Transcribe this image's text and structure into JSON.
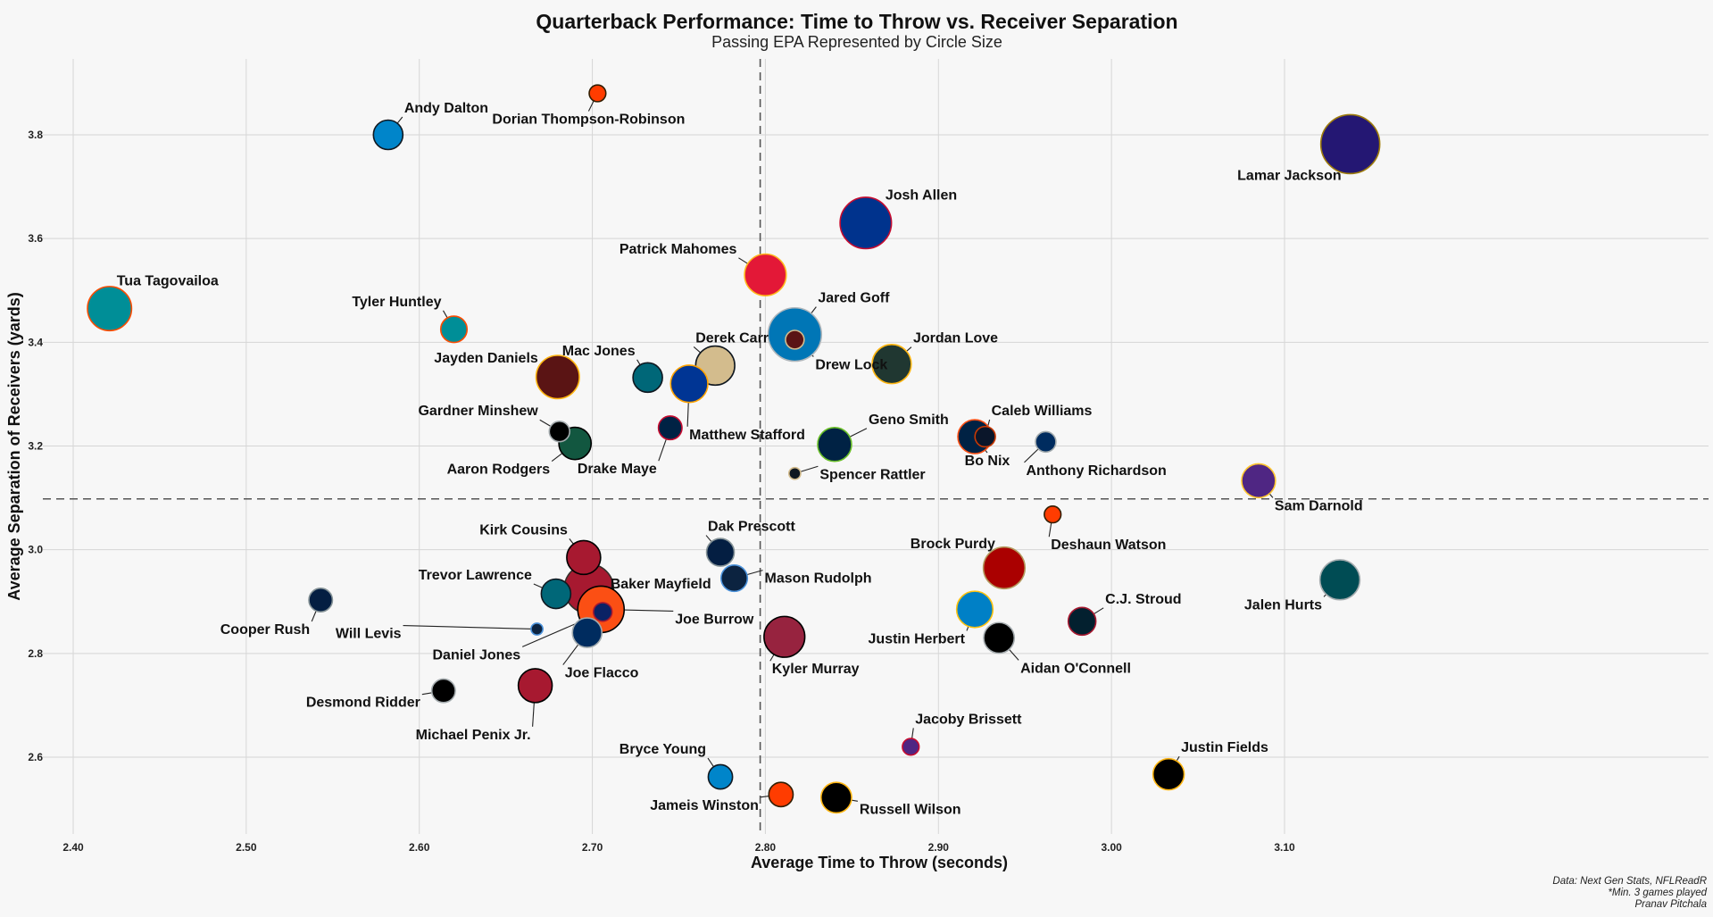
{
  "chart_data": {
    "type": "scatter",
    "title": "Quarterback Performance: Time to Throw vs. Receiver Separation",
    "subtitle": "Passing EPA Represented by Circle Size",
    "xlabel": "Average Time to Throw (seconds)",
    "ylabel": "Average Separation of Receivers (yards)",
    "xlim": [
      2.385,
      3.175
    ],
    "ylim": [
      2.47,
      3.96
    ],
    "x_ticks": [
      "2.40",
      "2.50",
      "2.60",
      "2.70",
      "2.80",
      "2.90",
      "3.00",
      "3.10"
    ],
    "y_ticks": [
      "2.6",
      "2.8",
      "3.0",
      "3.2",
      "3.4",
      "3.6",
      "3.8"
    ],
    "reference_lines": {
      "x": 2.797,
      "y": 3.098
    },
    "grid": true,
    "caption": [
      "Data: Next Gen Stats, NFLReadR",
      "*Min. 3 games played",
      "Pranav Pitchala"
    ],
    "points": [
      {
        "name": "Lamar Jackson",
        "x": 3.138,
        "y": 3.782,
        "size": 1.0,
        "fill": "#241773",
        "edge": "#9E7C0C"
      },
      {
        "name": "Josh Allen",
        "x": 2.858,
        "y": 3.63,
        "size": 0.76,
        "fill": "#00338D",
        "edge": "#C60C30"
      },
      {
        "name": "Jared Goff",
        "x": 2.817,
        "y": 3.415,
        "size": 0.82,
        "fill": "#0076B6",
        "edge": "#B0B7BC"
      },
      {
        "name": "Drew Lock",
        "x": 2.817,
        "y": 3.405,
        "size": 0.1,
        "fill": "#5A1414",
        "edge": "#D3BC8D"
      },
      {
        "name": "Patrick Mahomes",
        "x": 2.8,
        "y": 3.53,
        "size": 0.5,
        "fill": "#E31837",
        "edge": "#FFB81C"
      },
      {
        "name": "Tua Tagovailoa",
        "x": 2.421,
        "y": 3.465,
        "size": 0.56,
        "fill": "#008E97",
        "edge": "#FC4C02"
      },
      {
        "name": "Andy Dalton",
        "x": 2.582,
        "y": 3.8,
        "size": 0.25,
        "fill": "#0085CA",
        "edge": "#101820"
      },
      {
        "name": "Dorian Thompson-Robinson",
        "x": 2.703,
        "y": 3.88,
        "size": 0.08,
        "fill": "#FF3C00",
        "edge": "#311D00"
      },
      {
        "name": "Tyler Huntley",
        "x": 2.62,
        "y": 3.425,
        "size": 0.2,
        "fill": "#008E97",
        "edge": "#FC4C02"
      },
      {
        "name": "Derek Carr",
        "x": 2.771,
        "y": 3.355,
        "size": 0.44,
        "fill": "#D3BC8D",
        "edge": "#101820"
      },
      {
        "name": "Jordan Love",
        "x": 2.873,
        "y": 3.358,
        "size": 0.44,
        "fill": "#203731",
        "edge": "#FFB612"
      },
      {
        "name": "Jayden Daniels",
        "x": 2.68,
        "y": 3.333,
        "size": 0.54,
        "fill": "#5A1414",
        "edge": "#FFB612"
      },
      {
        "name": "Mac Jones",
        "x": 2.732,
        "y": 3.332,
        "size": 0.25,
        "fill": "#006778",
        "edge": "#101820"
      },
      {
        "name": "Matthew Stafford",
        "x": 2.756,
        "y": 3.32,
        "size": 0.4,
        "fill": "#003594",
        "edge": "#FFA300"
      },
      {
        "name": "Gardner Minshew",
        "x": 2.681,
        "y": 3.228,
        "size": 0.12,
        "fill": "#000000",
        "edge": "#A5ACAF"
      },
      {
        "name": "Aaron Rodgers",
        "x": 2.69,
        "y": 3.205,
        "size": 0.3,
        "fill": "#125740",
        "edge": "#000000"
      },
      {
        "name": "Drake Maye",
        "x": 2.745,
        "y": 3.235,
        "size": 0.16,
        "fill": "#002244",
        "edge": "#C60C30"
      },
      {
        "name": "Geno Smith",
        "x": 2.84,
        "y": 3.203,
        "size": 0.33,
        "fill": "#002244",
        "edge": "#69BE28"
      },
      {
        "name": "Spencer Rattler",
        "x": 2.817,
        "y": 3.147,
        "size": 0.04,
        "fill": "#101820",
        "edge": "#D3BC8D"
      },
      {
        "name": "Bo Nix",
        "x": 2.921,
        "y": 3.218,
        "size": 0.33,
        "fill": "#002244",
        "edge": "#FB4F14"
      },
      {
        "name": "Caleb Williams",
        "x": 2.927,
        "y": 3.218,
        "size": 0.12,
        "fill": "#0B162A",
        "edge": "#C83803"
      },
      {
        "name": "Anthony Richardson",
        "x": 2.962,
        "y": 3.208,
        "size": 0.12,
        "fill": "#002C5F",
        "edge": "#A2AAAD"
      },
      {
        "name": "Sam Darnold",
        "x": 3.085,
        "y": 3.133,
        "size": 0.33,
        "fill": "#4F2683",
        "edge": "#FFC62F"
      },
      {
        "name": "Deshaun Watson",
        "x": 2.966,
        "y": 3.068,
        "size": 0.08,
        "fill": "#FF3C00",
        "edge": "#311D00"
      },
      {
        "name": "Kirk Cousins",
        "x": 2.695,
        "y": 2.985,
        "size": 0.33,
        "fill": "#A71930",
        "edge": "#000000"
      },
      {
        "name": "Dak Prescott",
        "x": 2.774,
        "y": 2.995,
        "size": 0.22,
        "fill": "#041E42",
        "edge": "#869397"
      },
      {
        "name": "Brock Purdy",
        "x": 2.938,
        "y": 2.965,
        "size": 0.5,
        "fill": "#AA0000",
        "edge": "#B3995D"
      },
      {
        "name": "Jalen Hurts",
        "x": 3.132,
        "y": 2.942,
        "size": 0.46,
        "fill": "#004C54",
        "edge": "#A5ACAF"
      },
      {
        "name": "Baker Mayfield",
        "x": 2.698,
        "y": 2.925,
        "size": 0.7,
        "fill": "#A71930",
        "edge": "#34302B"
      },
      {
        "name": "Trevor Lawrence",
        "x": 2.679,
        "y": 2.915,
        "size": 0.25,
        "fill": "#006778",
        "edge": "#101820"
      },
      {
        "name": "Mason Rudolph",
        "x": 2.782,
        "y": 2.945,
        "size": 0.2,
        "fill": "#0C2340",
        "edge": "#4B92DB"
      },
      {
        "name": "Cooper Rush",
        "x": 2.543,
        "y": 2.903,
        "size": 0.16,
        "fill": "#041E42",
        "edge": "#869397"
      },
      {
        "name": "Will Levis",
        "x": 2.668,
        "y": 2.847,
        "size": 0.04,
        "fill": "#0C2340",
        "edge": "#4B92DB"
      },
      {
        "name": "Joe Burrow",
        "x": 2.705,
        "y": 2.885,
        "size": 0.62,
        "fill": "#FB4F14",
        "edge": "#000000"
      },
      {
        "name": "Daniel Jones",
        "x": 2.706,
        "y": 2.88,
        "size": 0.1,
        "fill": "#0B2265",
        "edge": "#A71930"
      },
      {
        "name": "Joe Flacco",
        "x": 2.697,
        "y": 2.84,
        "size": 0.25,
        "fill": "#002C5F",
        "edge": "#A2AAAD"
      },
      {
        "name": "Justin Herbert",
        "x": 2.921,
        "y": 2.885,
        "size": 0.38,
        "fill": "#0080C6",
        "edge": "#FFC20E"
      },
      {
        "name": "C.J. Stroud",
        "x": 2.983,
        "y": 2.862,
        "size": 0.22,
        "fill": "#03202F",
        "edge": "#A71930"
      },
      {
        "name": "Kyler Murray",
        "x": 2.811,
        "y": 2.832,
        "size": 0.48,
        "fill": "#97233F",
        "edge": "#000000"
      },
      {
        "name": "Aidan O'Connell",
        "x": 2.935,
        "y": 2.83,
        "size": 0.27,
        "fill": "#000000",
        "edge": "#A5ACAF"
      },
      {
        "name": "Desmond Ridder",
        "x": 2.614,
        "y": 2.728,
        "size": 0.16,
        "fill": "#000000",
        "edge": "#A5ACAF"
      },
      {
        "name": "Michael Penix Jr.",
        "x": 2.667,
        "y": 2.738,
        "size": 0.33,
        "fill": "#A71930",
        "edge": "#000000"
      },
      {
        "name": "Jacoby Brissett",
        "x": 2.884,
        "y": 2.62,
        "size": 0.08,
        "fill": "#4F2683",
        "edge": "#C60C30"
      },
      {
        "name": "Bryce Young",
        "x": 2.774,
        "y": 2.562,
        "size": 0.17,
        "fill": "#0085CA",
        "edge": "#101820"
      },
      {
        "name": "Justin Fields",
        "x": 3.033,
        "y": 2.567,
        "size": 0.28,
        "fill": "#000000",
        "edge": "#FFB612"
      },
      {
        "name": "Jameis Winston",
        "x": 2.809,
        "y": 2.528,
        "size": 0.17,
        "fill": "#FF3C00",
        "edge": "#311D00"
      },
      {
        "name": "Russell Wilson",
        "x": 2.841,
        "y": 2.522,
        "size": 0.27,
        "fill": "#000000",
        "edge": "#FFB612"
      }
    ]
  }
}
